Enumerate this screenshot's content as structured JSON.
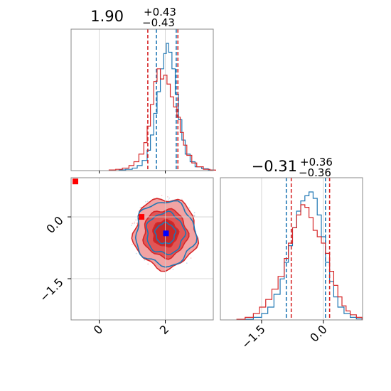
{
  "chart_data": {
    "type": "corner",
    "parameters": [
      {
        "title": {
          "value": "1.90",
          "plus": "+0.43",
          "minus": "−0.43"
        },
        "range": [
          -0.85,
          3.45
        ],
        "ticks": [
          0,
          2
        ],
        "tick_labels": [
          "0",
          "2"
        ],
        "quantile_lines": {
          "#1f77b4": [
            1.73,
            2.33
          ],
          "#d62728": [
            1.47,
            2.38
          ]
        }
      },
      {
        "title": {
          "value": "−0.31",
          "plus": "+0.36",
          "minus": "−0.36"
        },
        "range": [
          -2.5,
          0.95
        ],
        "ticks": [
          -1.5,
          0.0
        ],
        "tick_labels": [
          "−1.5",
          "0.0"
        ],
        "quantile_lines": {
          "#1f77b4": [
            -0.9,
            0.05
          ],
          "#d62728": [
            -0.78,
            0.15
          ]
        }
      }
    ],
    "series": [
      {
        "color": "#1f77b4",
        "hist_x": [
          [
            0.6,
            0.006
          ],
          [
            0.8,
            0.01
          ],
          [
            1.0,
            0.02
          ],
          [
            1.15,
            0.04
          ],
          [
            1.3,
            0.08
          ],
          [
            1.45,
            0.16
          ],
          [
            1.55,
            0.28
          ],
          [
            1.65,
            0.45
          ],
          [
            1.75,
            0.62
          ],
          [
            1.85,
            0.8
          ],
          [
            1.95,
            0.92
          ],
          [
            2.03,
            1.0
          ],
          [
            2.1,
            0.93
          ],
          [
            2.2,
            0.8
          ],
          [
            2.3,
            0.6
          ],
          [
            2.4,
            0.4
          ],
          [
            2.5,
            0.24
          ],
          [
            2.6,
            0.13
          ],
          [
            2.75,
            0.07
          ],
          [
            2.9,
            0.03
          ],
          [
            3.1,
            0.015
          ],
          [
            3.3,
            0.005
          ]
        ],
        "hist_y": [
          [
            -1.9,
            0.005
          ],
          [
            -1.7,
            0.02
          ],
          [
            -1.5,
            0.05
          ],
          [
            -1.35,
            0.1
          ],
          [
            -1.2,
            0.2
          ],
          [
            -1.05,
            0.32
          ],
          [
            -0.95,
            0.45
          ],
          [
            -0.85,
            0.58
          ],
          [
            -0.75,
            0.72
          ],
          [
            -0.65,
            0.85
          ],
          [
            -0.55,
            0.93
          ],
          [
            -0.45,
            0.97
          ],
          [
            -0.35,
            1.0
          ],
          [
            -0.25,
            0.95
          ],
          [
            -0.15,
            0.82
          ],
          [
            -0.05,
            0.65
          ],
          [
            0.05,
            0.45
          ],
          [
            0.15,
            0.3
          ],
          [
            0.25,
            0.18
          ],
          [
            0.35,
            0.1
          ],
          [
            0.5,
            0.05
          ],
          [
            0.65,
            0.02
          ],
          [
            0.8,
            0.008
          ]
        ],
        "contour_center": [
          2.0,
          -0.4
        ],
        "contour_radii": [
          [
            0.3,
            0.25
          ],
          [
            0.57,
            0.5
          ],
          [
            0.9,
            0.78
          ]
        ],
        "marker": [
          2.02,
          -0.4
        ]
      },
      {
        "color": "#d62728",
        "hist_x": [
          [
            0.3,
            0.005
          ],
          [
            0.5,
            0.01
          ],
          [
            0.7,
            0.02
          ],
          [
            0.9,
            0.04
          ],
          [
            1.05,
            0.07
          ],
          [
            1.2,
            0.13
          ],
          [
            1.35,
            0.22
          ],
          [
            1.45,
            0.35
          ],
          [
            1.55,
            0.52
          ],
          [
            1.65,
            0.7
          ],
          [
            1.75,
            0.8
          ],
          [
            1.85,
            0.72
          ],
          [
            1.95,
            0.75
          ],
          [
            2.05,
            0.68
          ],
          [
            2.15,
            0.58
          ],
          [
            2.25,
            0.5
          ],
          [
            2.35,
            0.42
          ],
          [
            2.45,
            0.3
          ],
          [
            2.55,
            0.2
          ],
          [
            2.65,
            0.12
          ],
          [
            2.8,
            0.06
          ],
          [
            2.95,
            0.03
          ],
          [
            3.15,
            0.01
          ],
          [
            3.35,
            0.004
          ]
        ],
        "hist_y": [
          [
            -2.1,
            0.005
          ],
          [
            -1.9,
            0.02
          ],
          [
            -1.7,
            0.05
          ],
          [
            -1.55,
            0.1
          ],
          [
            -1.4,
            0.16
          ],
          [
            -1.25,
            0.24
          ],
          [
            -1.1,
            0.34
          ],
          [
            -0.95,
            0.48
          ],
          [
            -0.85,
            0.6
          ],
          [
            -0.75,
            0.72
          ],
          [
            -0.65,
            0.82
          ],
          [
            -0.55,
            0.9
          ],
          [
            -0.45,
            0.88
          ],
          [
            -0.35,
            0.8
          ],
          [
            -0.25,
            0.7
          ],
          [
            -0.15,
            0.65
          ],
          [
            -0.05,
            0.6
          ],
          [
            0.05,
            0.52
          ],
          [
            0.15,
            0.38
          ],
          [
            0.25,
            0.27
          ],
          [
            0.35,
            0.18
          ],
          [
            0.45,
            0.11
          ],
          [
            0.55,
            0.07
          ],
          [
            0.65,
            0.04
          ],
          [
            0.8,
            0.02
          ]
        ],
        "contour_center": [
          2.0,
          -0.4
        ],
        "contour_radii": [
          [
            0.38,
            0.32
          ],
          [
            0.66,
            0.58
          ],
          [
            0.95,
            0.85
          ]
        ],
        "marker": [
          1.28,
          0.0
        ],
        "outlier": [
          -0.72,
          0.86
        ]
      }
    ]
  }
}
